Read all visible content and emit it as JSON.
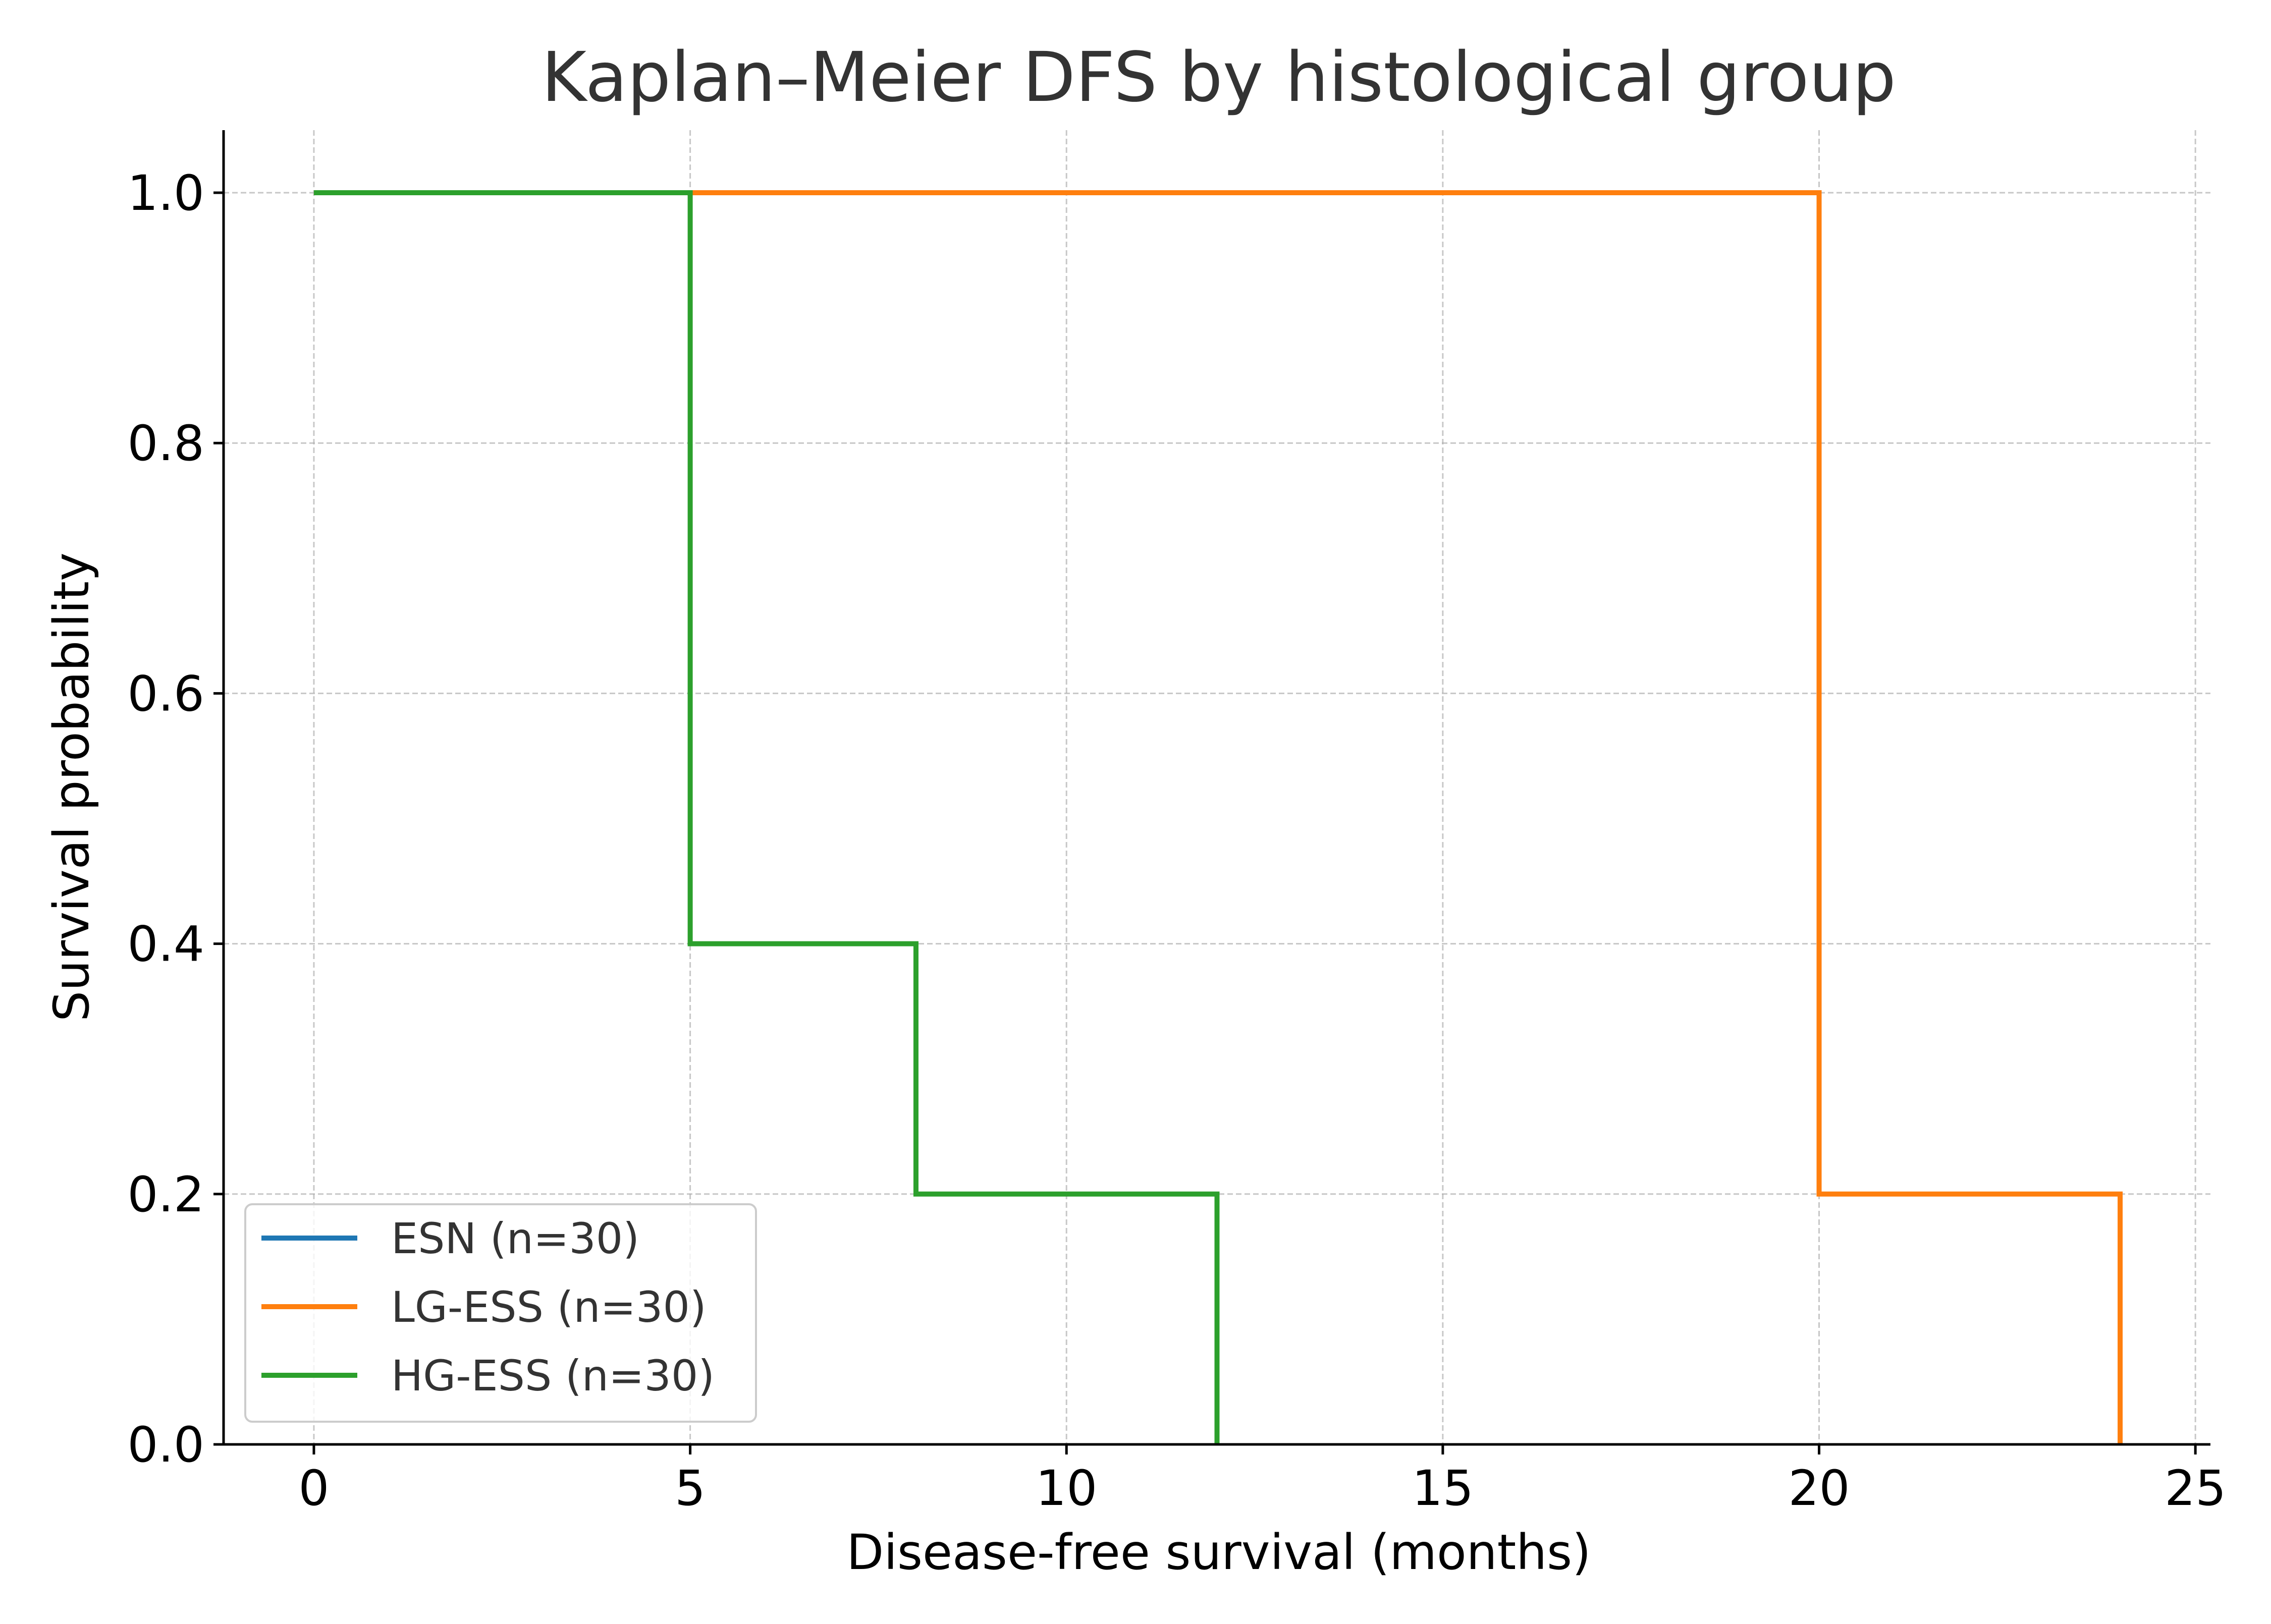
{
  "chart_data": {
    "type": "line",
    "step": "post",
    "title": "Kaplan–Meier DFS by histological group",
    "xlabel": "Disease-free survival (months)",
    "ylabel": "Survival probability",
    "xlim": [
      -1.2,
      25.2
    ],
    "ylim": [
      0,
      1.05
    ],
    "xticks": [
      0,
      5,
      10,
      15,
      20,
      25
    ],
    "xtick_labels": [
      "0",
      "5",
      "10",
      "15",
      "20",
      "25"
    ],
    "yticks": [
      0.0,
      0.2,
      0.4,
      0.6,
      0.8,
      1.0
    ],
    "ytick_labels": [
      "0.0",
      "0.2",
      "0.4",
      "0.6",
      "0.8",
      "1.0"
    ],
    "grid": true,
    "legend_position": "lower-left",
    "series": [
      {
        "name": "ESN (n=30)",
        "color": "#1f77b4",
        "x": [],
        "y": []
      },
      {
        "name": "LG-ESS (n=30)",
        "color": "#ff7f0e",
        "x": [
          0,
          20,
          24
        ],
        "y": [
          1.0,
          0.2,
          0.0
        ]
      },
      {
        "name": "HG-ESS (n=30)",
        "color": "#2ca02c",
        "x": [
          0,
          5,
          8,
          12
        ],
        "y": [
          1.0,
          0.4,
          0.2,
          0.0
        ]
      }
    ]
  }
}
